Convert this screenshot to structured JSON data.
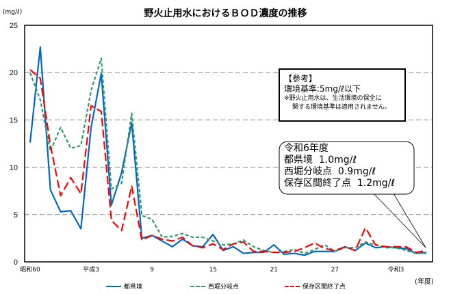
{
  "chart_data": {
    "type": "line",
    "title": "野火止用水におけるＢＯＤ濃度の推移",
    "ylabel": "(mg/ℓ)",
    "xlabel": "(年度)",
    "ylim": [
      0,
      25
    ],
    "yticks": [
      "0",
      "5",
      "10",
      "15",
      "20",
      "25"
    ],
    "grid": "horizontal dashed",
    "legend_position": "bottom",
    "x": [
      1985,
      1986,
      1987,
      1988,
      1989,
      1990,
      1991,
      1992,
      1993,
      1994,
      1995,
      1996,
      1997,
      1998,
      1999,
      2000,
      2001,
      2002,
      2003,
      2004,
      2005,
      2006,
      2007,
      2008,
      2009,
      2010,
      2011,
      2012,
      2013,
      2014,
      2015,
      2016,
      2017,
      2018,
      2019,
      2020,
      2021,
      2022,
      2023,
      2024
    ],
    "xticks": [
      {
        "x": 1985,
        "label": "昭和60"
      },
      {
        "x": 1991,
        "label": "平成3"
      },
      {
        "x": 1997,
        "label": "9"
      },
      {
        "x": 2003,
        "label": "15"
      },
      {
        "x": 2009,
        "label": "21"
      },
      {
        "x": 2015,
        "label": "27"
      },
      {
        "x": 2021,
        "label": "令和3"
      }
    ],
    "series": [
      {
        "name": "都県境",
        "color": "#0066cc",
        "dash": "solid",
        "values": [
          12.6,
          22.7,
          7.6,
          5.3,
          5.4,
          3.5,
          14.2,
          19.9,
          6.0,
          9.4,
          14.7,
          2.5,
          2.8,
          2.2,
          1.6,
          2.4,
          1.7,
          1.6,
          2.9,
          1.2,
          1.6,
          0.9,
          1.0,
          1.0,
          1.8,
          0.8,
          0.9,
          0.7,
          1.1,
          1.1,
          1.1,
          1.6,
          1.2,
          2.0,
          1.5,
          1.6,
          1.5,
          1.4,
          0.9,
          1.0
        ]
      },
      {
        "name": "西堀分岐点",
        "color": "#339966",
        "dash": "dotted",
        "values": [
          20.0,
          17.1,
          11.7,
          14.2,
          12.0,
          12.3,
          18.1,
          21.5,
          7.7,
          8.3,
          15.7,
          4.9,
          4.5,
          2.6,
          2.7,
          3.0,
          2.6,
          2.6,
          2.2,
          1.8,
          1.9,
          2.3,
          1.6,
          1.2,
          1.0,
          1.1,
          1.3,
          0.9,
          1.3,
          1.8,
          1.1,
          1.5,
          1.5,
          2.1,
          1.8,
          1.5,
          1.5,
          1.2,
          0.9,
          0.9
        ]
      },
      {
        "name": "保存区間終了点",
        "color": "#ff0000",
        "dash": "dashed",
        "values": [
          20.3,
          19.4,
          12.3,
          7.0,
          8.9,
          7.2,
          16.5,
          15.9,
          4.4,
          3.3,
          8.0,
          2.3,
          2.8,
          2.4,
          2.2,
          2.6,
          1.7,
          1.5,
          1.9,
          1.3,
          1.9,
          2.1,
          1.1,
          1.1,
          1.0,
          1.0,
          1.1,
          1.5,
          2.0,
          1.4,
          1.2,
          1.6,
          1.2,
          3.6,
          1.8,
          1.6,
          1.6,
          1.6,
          1.0,
          1.2
        ]
      }
    ],
    "annotations": {
      "reference": {
        "heading": "【参考】",
        "standard": "環境基準:5mg/ℓ以下",
        "note1": "※野火止用水は、生活環境の保全に",
        "note2": "関する環境基準は適用されません。"
      },
      "latest": {
        "line1": "令和6年度",
        "line2": "都県境  1.0mg/ℓ",
        "line3": "西堀分岐点  0.9mg/ℓ",
        "line4": "保存区間終了点  1.2mg/ℓ"
      }
    }
  }
}
